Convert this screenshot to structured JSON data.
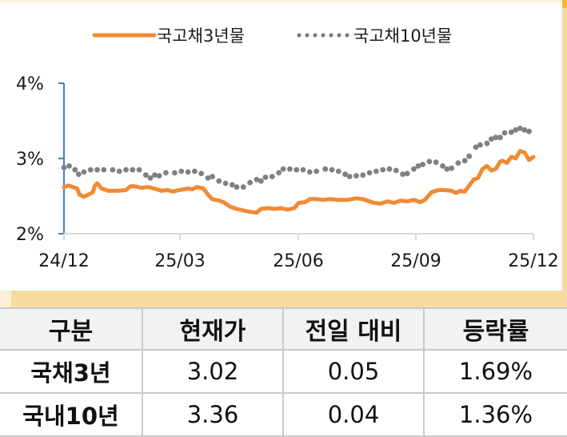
{
  "chart_data": {
    "type": "line",
    "title": "",
    "xlabel": "",
    "ylabel": "",
    "ylim": [
      2,
      4
    ],
    "yticks": [
      "4%",
      "3%",
      "2%"
    ],
    "xticks": [
      "24/12",
      "25/03",
      "25/06",
      "25/09",
      "25/12"
    ],
    "grid": false,
    "legend_position": "top",
    "series": [
      {
        "name": "국고채3년물",
        "style": "solid",
        "color": "#f08a35",
        "points": [
          [
            0.0,
            2.62
          ],
          [
            0.01,
            2.64
          ],
          [
            0.02,
            2.62
          ],
          [
            0.03,
            2.6
          ],
          [
            0.035,
            2.52
          ],
          [
            0.045,
            2.49
          ],
          [
            0.055,
            2.52
          ],
          [
            0.065,
            2.55
          ],
          [
            0.07,
            2.64
          ],
          [
            0.075,
            2.67
          ],
          [
            0.085,
            2.6
          ],
          [
            0.1,
            2.57
          ],
          [
            0.12,
            2.57
          ],
          [
            0.14,
            2.58
          ],
          [
            0.15,
            2.63
          ],
          [
            0.16,
            2.63
          ],
          [
            0.175,
            2.61
          ],
          [
            0.19,
            2.62
          ],
          [
            0.21,
            2.59
          ],
          [
            0.22,
            2.57
          ],
          [
            0.235,
            2.58
          ],
          [
            0.245,
            2.56
          ],
          [
            0.26,
            2.58
          ],
          [
            0.28,
            2.6
          ],
          [
            0.29,
            2.59
          ],
          [
            0.3,
            2.62
          ],
          [
            0.315,
            2.6
          ],
          [
            0.325,
            2.52
          ],
          [
            0.335,
            2.46
          ],
          [
            0.35,
            2.44
          ],
          [
            0.36,
            2.42
          ],
          [
            0.375,
            2.36
          ],
          [
            0.39,
            2.33
          ],
          [
            0.405,
            2.31
          ],
          [
            0.42,
            2.29
          ],
          [
            0.435,
            2.28
          ],
          [
            0.445,
            2.33
          ],
          [
            0.46,
            2.34
          ],
          [
            0.475,
            2.33
          ],
          [
            0.49,
            2.34
          ],
          [
            0.505,
            2.32
          ],
          [
            0.52,
            2.34
          ],
          [
            0.53,
            2.41
          ],
          [
            0.545,
            2.42
          ],
          [
            0.555,
            2.46
          ],
          [
            0.57,
            2.46
          ],
          [
            0.585,
            2.45
          ],
          [
            0.6,
            2.46
          ],
          [
            0.62,
            2.45
          ],
          [
            0.64,
            2.45
          ],
          [
            0.66,
            2.47
          ],
          [
            0.675,
            2.46
          ],
          [
            0.69,
            2.43
          ],
          [
            0.7,
            2.41
          ],
          [
            0.715,
            2.4
          ],
          [
            0.73,
            2.43
          ],
          [
            0.745,
            2.41
          ],
          [
            0.76,
            2.44
          ],
          [
            0.775,
            2.43
          ],
          [
            0.79,
            2.45
          ],
          [
            0.805,
            2.42
          ],
          [
            0.815,
            2.45
          ],
          [
            0.83,
            2.55
          ],
          [
            0.845,
            2.58
          ],
          [
            0.86,
            2.58
          ],
          [
            0.875,
            2.57
          ],
          [
            0.885,
            2.54
          ],
          [
            0.895,
            2.57
          ],
          [
            0.905,
            2.56
          ],
          [
            0.915,
            2.64
          ],
          [
            0.925,
            2.72
          ],
          [
            0.935,
            2.74
          ],
          [
            0.945,
            2.86
          ],
          [
            0.955,
            2.9
          ],
          [
            0.965,
            2.84
          ],
          [
            0.975,
            2.86
          ],
          [
            0.985,
            2.96
          ],
          [
            0.99,
            2.97
          ],
          [
            1.0,
            2.94
          ],
          [
            1.01,
            3.02
          ],
          [
            1.02,
            3.0
          ],
          [
            1.03,
            3.1
          ],
          [
            1.04,
            3.08
          ],
          [
            1.05,
            2.98
          ],
          [
            1.06,
            3.02
          ]
        ]
      },
      {
        "name": "국고채10년물",
        "style": "dotted",
        "color": "#808080",
        "points": [
          [
            0.0,
            2.88
          ],
          [
            0.012,
            2.9
          ],
          [
            0.025,
            2.85
          ],
          [
            0.033,
            2.79
          ],
          [
            0.045,
            2.82
          ],
          [
            0.06,
            2.85
          ],
          [
            0.075,
            2.85
          ],
          [
            0.09,
            2.85
          ],
          [
            0.11,
            2.85
          ],
          [
            0.125,
            2.83
          ],
          [
            0.14,
            2.85
          ],
          [
            0.155,
            2.85
          ],
          [
            0.17,
            2.85
          ],
          [
            0.185,
            2.78
          ],
          [
            0.195,
            2.74
          ],
          [
            0.205,
            2.78
          ],
          [
            0.215,
            2.77
          ],
          [
            0.23,
            2.81
          ],
          [
            0.25,
            2.81
          ],
          [
            0.265,
            2.83
          ],
          [
            0.28,
            2.82
          ],
          [
            0.295,
            2.83
          ],
          [
            0.31,
            2.8
          ],
          [
            0.325,
            2.74
          ],
          [
            0.335,
            2.76
          ],
          [
            0.35,
            2.7
          ],
          [
            0.365,
            2.67
          ],
          [
            0.38,
            2.65
          ],
          [
            0.39,
            2.62
          ],
          [
            0.405,
            2.62
          ],
          [
            0.42,
            2.68
          ],
          [
            0.435,
            2.72
          ],
          [
            0.445,
            2.7
          ],
          [
            0.455,
            2.75
          ],
          [
            0.47,
            2.76
          ],
          [
            0.485,
            2.81
          ],
          [
            0.495,
            2.86
          ],
          [
            0.51,
            2.86
          ],
          [
            0.525,
            2.85
          ],
          [
            0.54,
            2.85
          ],
          [
            0.555,
            2.82
          ],
          [
            0.57,
            2.83
          ],
          [
            0.59,
            2.86
          ],
          [
            0.605,
            2.85
          ],
          [
            0.62,
            2.83
          ],
          [
            0.635,
            2.79
          ],
          [
            0.645,
            2.76
          ],
          [
            0.66,
            2.77
          ],
          [
            0.675,
            2.78
          ],
          [
            0.69,
            2.81
          ],
          [
            0.705,
            2.83
          ],
          [
            0.72,
            2.85
          ],
          [
            0.735,
            2.86
          ],
          [
            0.75,
            2.84
          ],
          [
            0.765,
            2.79
          ],
          [
            0.775,
            2.8
          ],
          [
            0.79,
            2.86
          ],
          [
            0.8,
            2.9
          ],
          [
            0.81,
            2.92
          ],
          [
            0.825,
            2.96
          ],
          [
            0.84,
            2.95
          ],
          [
            0.855,
            2.9
          ],
          [
            0.865,
            2.86
          ],
          [
            0.875,
            2.87
          ],
          [
            0.89,
            2.94
          ],
          [
            0.905,
            2.97
          ],
          [
            0.915,
            3.03
          ],
          [
            0.93,
            3.15
          ],
          [
            0.94,
            3.18
          ],
          [
            0.955,
            3.2
          ],
          [
            0.965,
            3.26
          ],
          [
            0.975,
            3.28
          ],
          [
            0.985,
            3.28
          ],
          [
            0.995,
            3.34
          ],
          [
            1.01,
            3.35
          ],
          [
            1.02,
            3.38
          ],
          [
            1.03,
            3.4
          ],
          [
            1.04,
            3.38
          ],
          [
            1.05,
            3.36
          ]
        ]
      }
    ]
  },
  "legend": {
    "item_3y": "국고채3년물",
    "item_10y": "국고채10년물"
  },
  "table": {
    "headers": [
      "구분",
      "현재가",
      "전일 대비",
      "등락률"
    ],
    "rows": [
      [
        "국채3년",
        "3.02",
        "0.05",
        "1.69%"
      ],
      [
        "국내10년",
        "3.36",
        "0.04",
        "1.36%"
      ]
    ]
  },
  "colors": {
    "series_3y": "#f08a35",
    "series_10y": "#808080",
    "y_axis": "#4a7ebb",
    "x_axis": "#d9d9d9",
    "band": "#f6dca2"
  }
}
